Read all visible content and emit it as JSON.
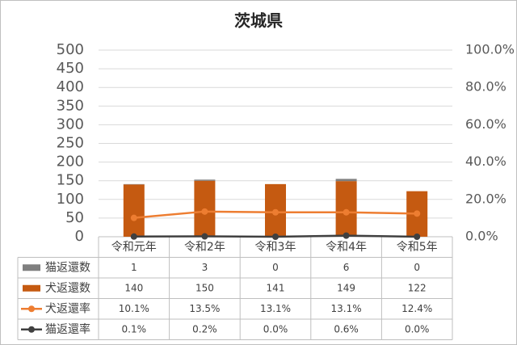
{
  "chart_data": {
    "type": "bar",
    "title": "茨城県",
    "categories": [
      "令和元年",
      "令和2年",
      "令和3年",
      "令和4年",
      "令和5年"
    ],
    "series": [
      {
        "name": "猫返還数",
        "color": "#7f7f7f",
        "values": [
          1,
          3,
          0,
          6,
          0
        ],
        "kind": "bar"
      },
      {
        "name": "犬返還数",
        "color": "#c55a11",
        "values": [
          140,
          150,
          141,
          149,
          122
        ],
        "kind": "bar"
      },
      {
        "name": "犬返還率",
        "color": "#ed7d31",
        "values": [
          10.1,
          13.5,
          13.1,
          13.1,
          12.4
        ],
        "value_labels": [
          "10.1%",
          "13.5%",
          "13.1%",
          "13.1%",
          "12.4%"
        ],
        "kind": "line",
        "axis": "y2"
      },
      {
        "name": "猫返還率",
        "color": "#404040",
        "values": [
          0.1,
          0.2,
          0.0,
          0.6,
          0.0
        ],
        "value_labels": [
          "0.1%",
          "0.2%",
          "0.0%",
          "0.6%",
          "0.0%"
        ],
        "kind": "line",
        "axis": "y2"
      }
    ],
    "stacked": true,
    "ylim": [
      0,
      500
    ],
    "yticks": [
      0,
      50,
      100,
      150,
      200,
      250,
      300,
      350,
      400,
      450,
      500
    ],
    "y2lim": [
      0,
      100
    ],
    "y2ticks": [
      {
        "value": 0,
        "label": "0.0%"
      },
      {
        "value": 20,
        "label": "20.0%"
      },
      {
        "value": 40,
        "label": "40.0%"
      },
      {
        "value": 60,
        "label": "60.0%"
      },
      {
        "value": 80,
        "label": "80.0%"
      },
      {
        "value": 100,
        "label": "100.0%"
      }
    ],
    "grid": true,
    "data_table": true
  }
}
